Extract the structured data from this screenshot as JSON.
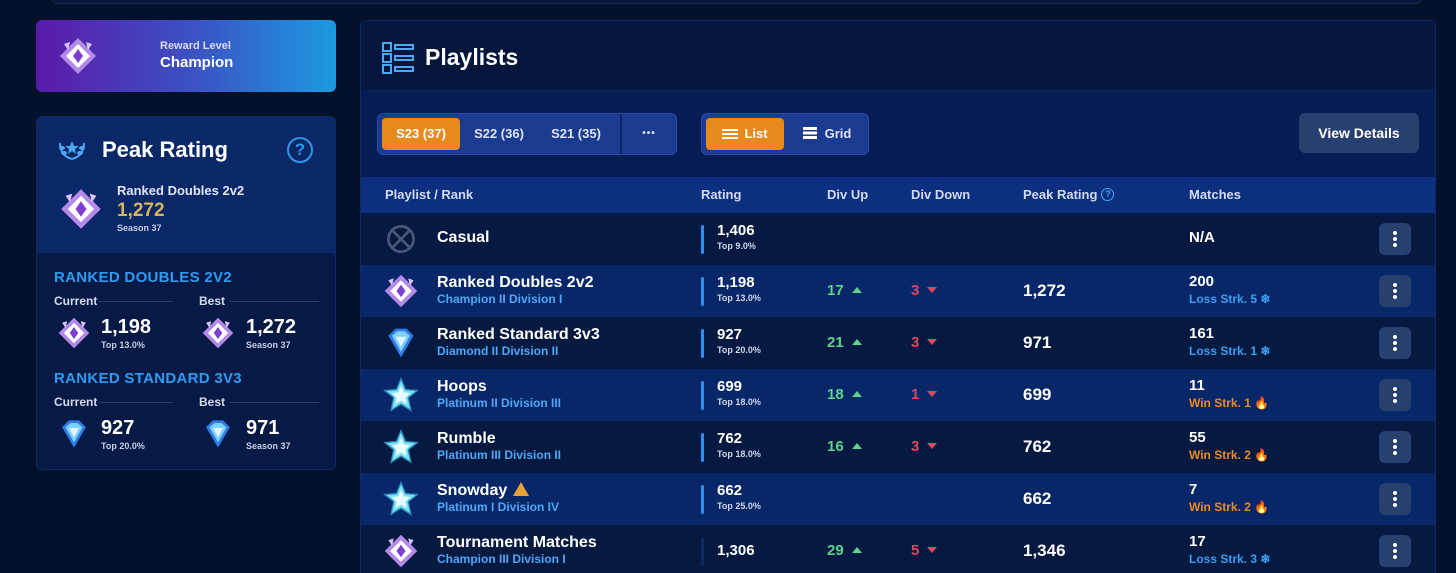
{
  "reward": {
    "label": "Reward Level",
    "value": "Champion"
  },
  "peak": {
    "title": "Peak Rating",
    "help": "?",
    "playlist": "Ranked Doubles 2v2",
    "value": "1,272",
    "season": "Season 37",
    "sections": [
      {
        "heading": "RANKED DOUBLES 2V2",
        "current_label": "Current",
        "best_label": "Best",
        "current_value": "1,198",
        "current_sub": "Top 13.0%",
        "best_value": "1,272",
        "best_sub": "Season 37"
      },
      {
        "heading": "RANKED STANDARD 3V3",
        "current_label": "Current",
        "best_label": "Best",
        "current_value": "927",
        "current_sub": "Top 20.0%",
        "best_value": "971",
        "best_sub": "Season 37"
      }
    ]
  },
  "main": {
    "title": "Playlists",
    "seasons": [
      "S23 (37)",
      "S22 (36)",
      "S21 (35)"
    ],
    "more": "•••",
    "view_list": "List",
    "view_grid": "Grid",
    "view_details": "View Details",
    "columns": {
      "playlist": "Playlist / Rank",
      "rating": "Rating",
      "div_up": "Div Up",
      "div_down": "Div Down",
      "peak": "Peak Rating",
      "peak_help": "?",
      "matches": "Matches"
    },
    "rows": [
      {
        "name": "Casual",
        "rank": "",
        "rating": "1,406",
        "top": "Top 9.0%",
        "div_up": "",
        "div_down": "",
        "peak": "",
        "matches": "N/A",
        "streak": "",
        "streak_type": ""
      },
      {
        "name": "Ranked Doubles 2v2",
        "rank": "Champion II Division I",
        "rating": "1,198",
        "top": "Top 13.0%",
        "div_up": "17",
        "div_down": "3",
        "peak": "1,272",
        "matches": "200",
        "streak": "Loss Strk. 5 ❄",
        "streak_type": "loss"
      },
      {
        "name": "Ranked Standard 3v3",
        "rank": "Diamond II Division II",
        "rating": "927",
        "top": "Top 20.0%",
        "div_up": "21",
        "div_down": "3",
        "peak": "971",
        "matches": "161",
        "streak": "Loss Strk. 1 ❄",
        "streak_type": "loss"
      },
      {
        "name": "Hoops",
        "rank": "Platinum II Division III",
        "rating": "699",
        "top": "Top 18.0%",
        "div_up": "18",
        "div_down": "1",
        "peak": "699",
        "matches": "11",
        "streak": "Win Strk. 1 🔥",
        "streak_type": "win"
      },
      {
        "name": "Rumble",
        "rank": "Platinum III Division II",
        "rating": "762",
        "top": "Top 18.0%",
        "div_up": "16",
        "div_down": "3",
        "peak": "762",
        "matches": "55",
        "streak": "Win Strk. 2 🔥",
        "streak_type": "win"
      },
      {
        "name": "Snowday",
        "rank": "Platinum I Division IV",
        "rating": "662",
        "top": "Top 25.0%",
        "div_up": "",
        "div_down": "",
        "peak": "662",
        "matches": "7",
        "streak": "Win Strk. 2 🔥",
        "streak_type": "win"
      },
      {
        "name": "Tournament Matches",
        "rank": "Champion III Division I",
        "rating": "1,306",
        "top": "",
        "div_up": "29",
        "div_down": "5",
        "peak": "1,346",
        "matches": "17",
        "streak": "Loss Strk. 3 ❄",
        "streak_type": "loss"
      }
    ]
  },
  "colors": {
    "accent_orange": "#e8891e",
    "div_up": "#5bd38a",
    "div_down": "#e0465e",
    "peak_gold": "#d8b55a",
    "link_blue": "#4ea8f5"
  },
  "icons": {
    "reward": "champion-rank-icon",
    "peak": "laurel-icon",
    "playlists": "playlist-list-icon",
    "casual": "casual-x-icon",
    "champion": "champion-rank-icon",
    "diamond": "diamond-rank-icon",
    "platinum": "platinum-rank-icon"
  }
}
